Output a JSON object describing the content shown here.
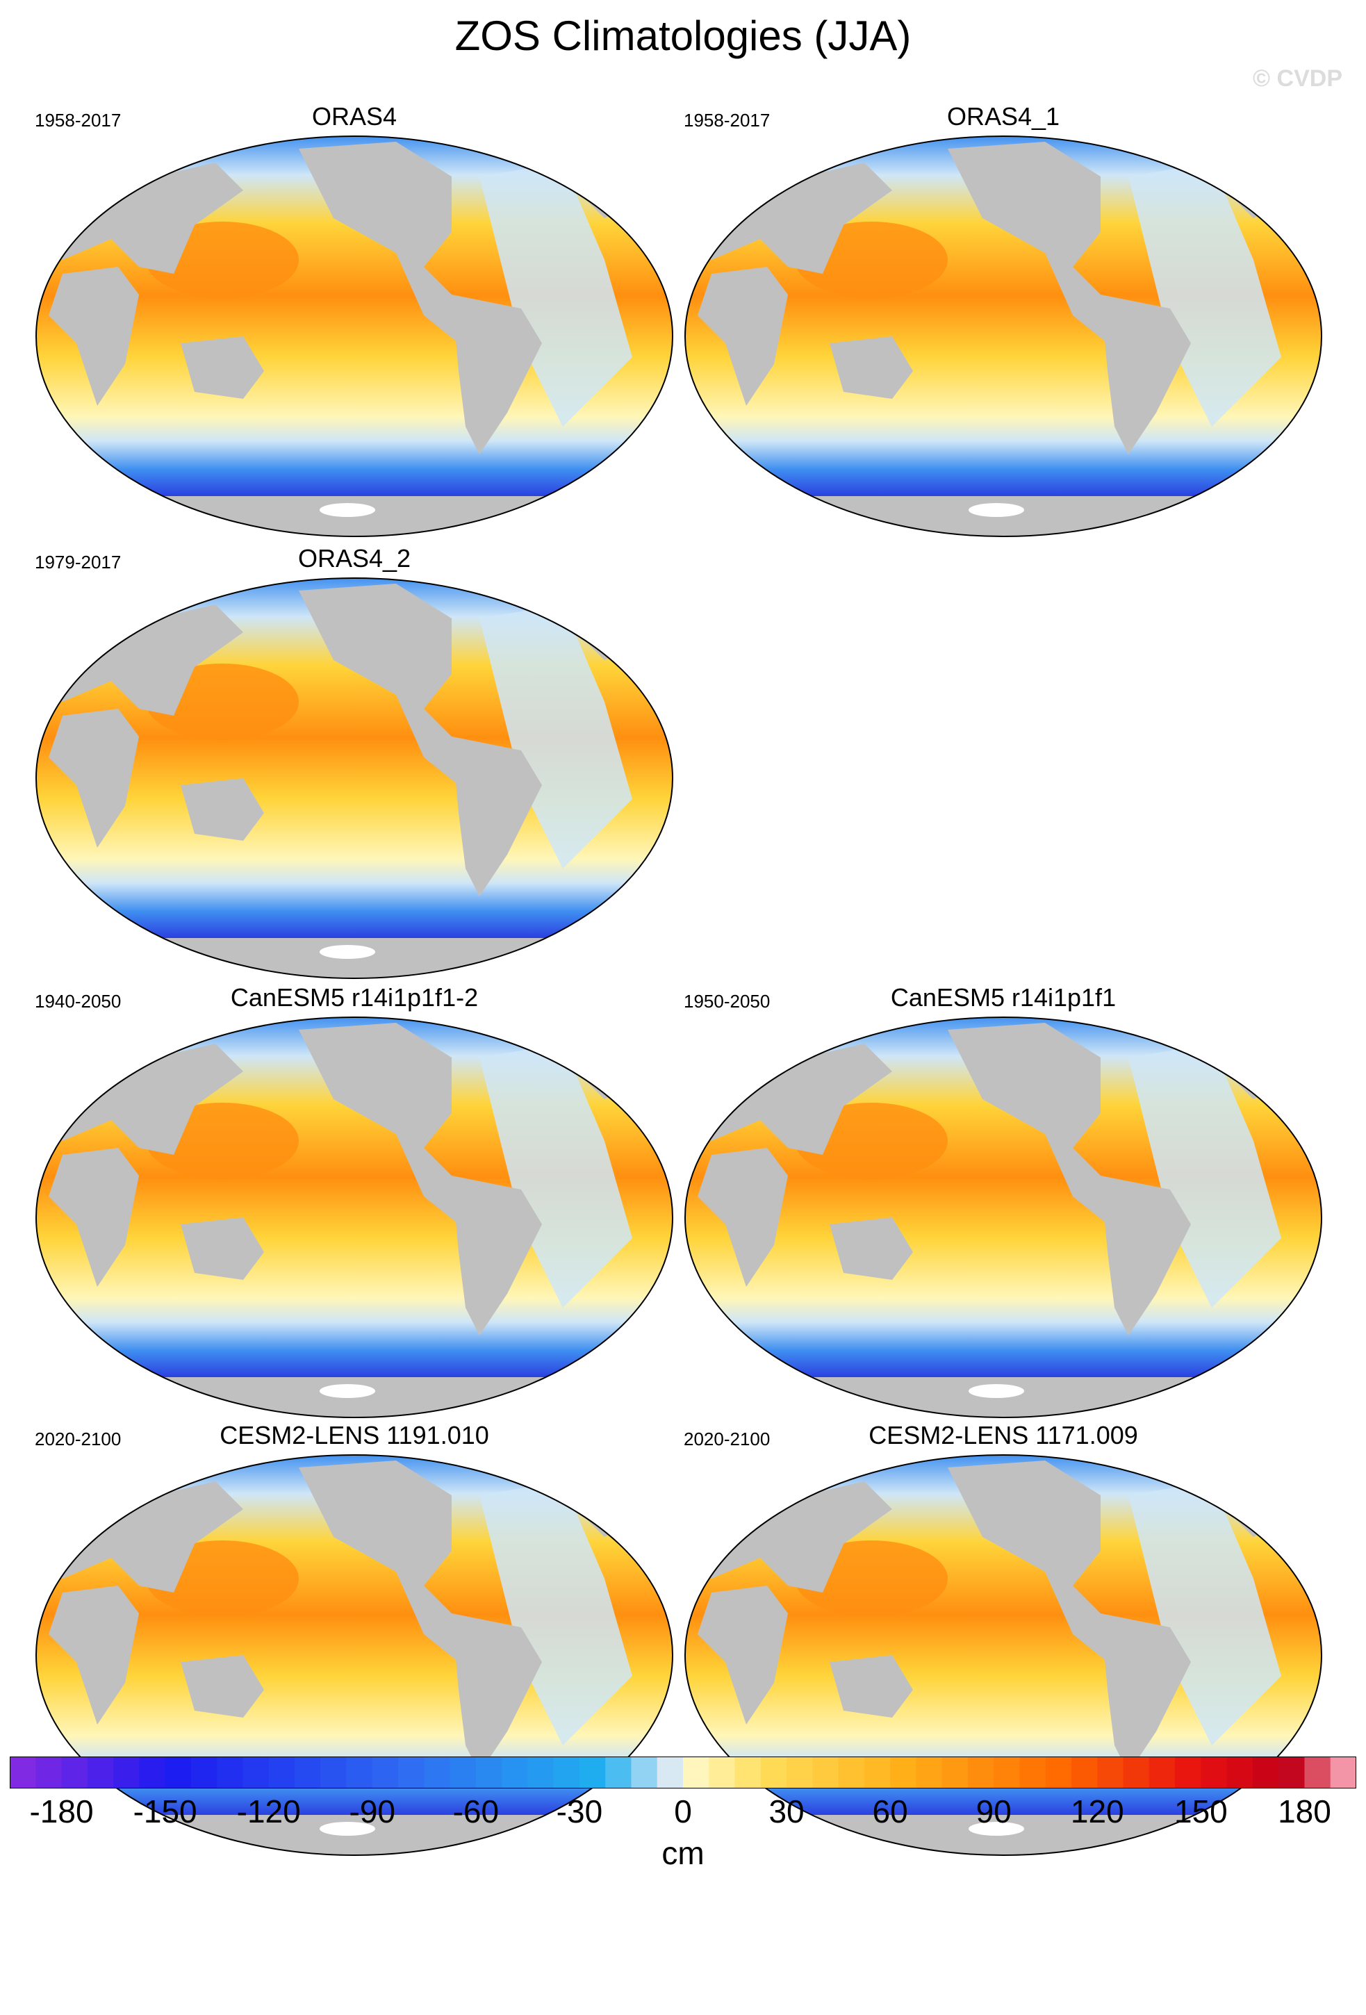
{
  "figure": {
    "title": "ZOS Climatologies (JJA)",
    "watermark": "© CVDP"
  },
  "colors": {
    "land": "#c0c0c0",
    "antarctica": "#ffffff",
    "deep_negative": "#7a2ee8",
    "strong_negative": "#2a3ce0",
    "negative": "#3f8ff0",
    "weak_negative": "#cfe6f7",
    "neutral": "#fff6b8",
    "positive": "#ffd43a",
    "strong_positive": "#ff8f10"
  },
  "panels": [
    {
      "title": "ORAS4",
      "years": "1958-2017"
    },
    {
      "title": "ORAS4_1",
      "years": "1958-2017"
    },
    {
      "title": "ORAS4_2",
      "years": "1979-2017"
    },
    {
      "title": "CanESM5 r14i1p1f1-2",
      "years": "1940-2050"
    },
    {
      "title": "CanESM5 r14i1p1f1",
      "years": "1950-2050"
    },
    {
      "title": "CESM2-LENS 1191.010",
      "years": "2020-2100"
    },
    {
      "title": "CESM2-LENS 1171.009",
      "years": "2020-2100"
    }
  ],
  "colorbar": {
    "units": "cm",
    "min": -195,
    "max": 195,
    "tick_labels": [
      "-180",
      "-150",
      "-120",
      "-90",
      "-60",
      "-30",
      "0",
      "30",
      "60",
      "90",
      "120",
      "150",
      "180"
    ],
    "tick_values": [
      -180,
      -150,
      -120,
      -90,
      -60,
      -30,
      0,
      30,
      60,
      90,
      120,
      150,
      180
    ]
  }
}
